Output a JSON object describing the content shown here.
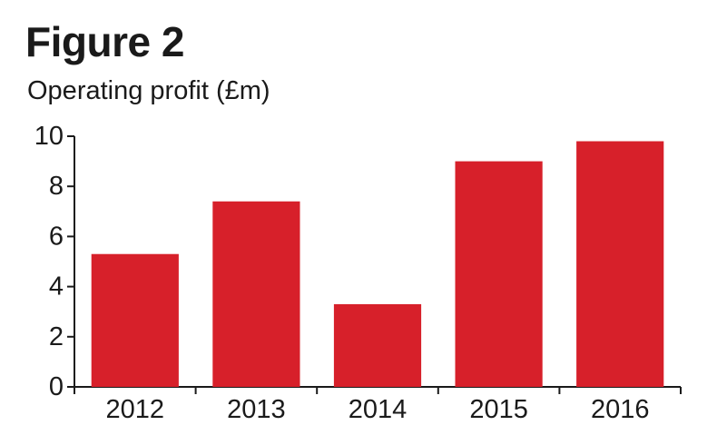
{
  "figure": {
    "title": "Figure 2",
    "subtitle": "Operating profit (£m)"
  },
  "chart_data": {
    "type": "bar",
    "title": "Figure 2",
    "subtitle": "Operating profit (£m)",
    "categories": [
      "2012",
      "2013",
      "2014",
      "2015",
      "2016"
    ],
    "values": [
      5.3,
      7.4,
      3.3,
      9.0,
      9.8
    ],
    "xlabel": "",
    "ylabel": "",
    "ylim": [
      0,
      10
    ],
    "yticks": [
      0,
      2,
      4,
      6,
      8,
      10
    ],
    "grid": false,
    "legend": "none",
    "bar_color": "#d7202a",
    "axis_color": "#1a1a1a"
  }
}
